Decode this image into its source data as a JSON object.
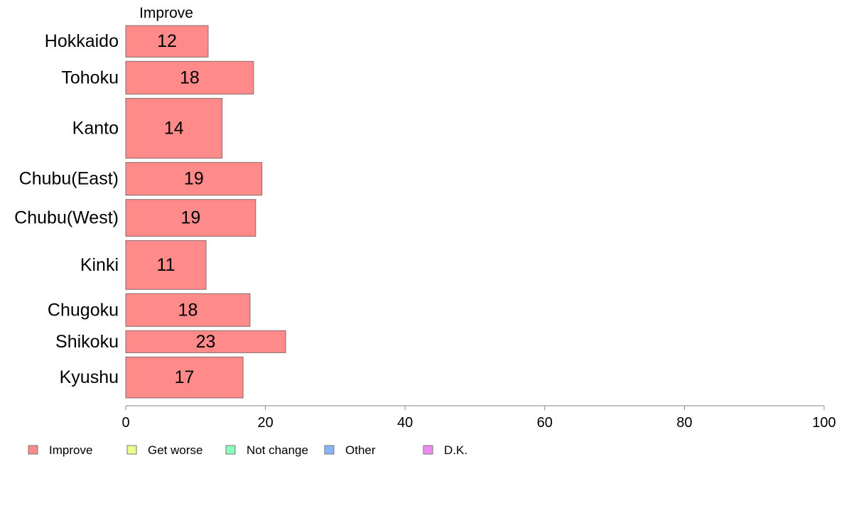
{
  "chart_data": {
    "type": "bar",
    "orientation": "horizontal",
    "series_title": "Improve",
    "categories": [
      "Hokkaido",
      "Tohoku",
      "Kanto",
      "Chubu(East)",
      "Chubu(West)",
      "Kinki",
      "Chugoku",
      "Shikoku",
      "Kyushu"
    ],
    "relative_widths": [
      1,
      1.04,
      1.9,
      1.04,
      1.17,
      1.55,
      1.04,
      0.7,
      1.3
    ],
    "series": [
      {
        "name": "Improve",
        "values": [
          11.8,
          18.3,
          13.8,
          19.5,
          18.6,
          11.5,
          17.8,
          22.9,
          16.8
        ],
        "labels": [
          "12",
          "18",
          "14",
          "19",
          "19",
          "11",
          "18",
          "23",
          "17"
        ]
      }
    ],
    "xlim": [
      0,
      100
    ],
    "xticks": [
      "0",
      "20",
      "40",
      "60",
      "80",
      "100"
    ],
    "grid": false,
    "legend_position": "bottom",
    "legend": [
      {
        "label": "Improve",
        "color": "#ff8a8a"
      },
      {
        "label": "Get worse",
        "color": "#eaff8a"
      },
      {
        "label": "Not change",
        "color": "#8affbd"
      },
      {
        "label": "Other",
        "color": "#8ab4ff"
      },
      {
        "label": "D.K.",
        "color": "#f08af5"
      }
    ],
    "bar_color": "#ff8a8a",
    "bar_stroke": "#8a6a6a"
  }
}
